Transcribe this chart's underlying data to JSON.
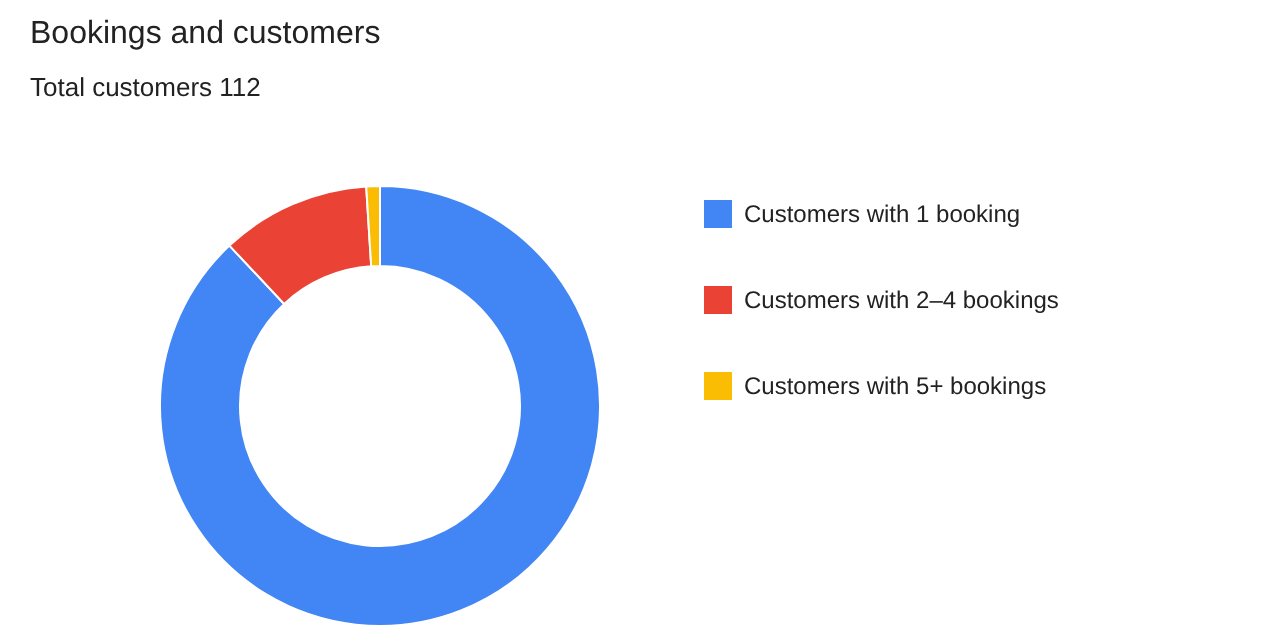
{
  "chart_data": {
    "type": "donut",
    "title": "Bookings and customers",
    "subtitle": "Total customers 112",
    "categories": [
      "Customers with 1 booking",
      "Customers with 2–4 bookings",
      "Customers with 5+ bookings"
    ],
    "values": [
      88,
      11,
      1
    ],
    "colors": [
      "#4285f4",
      "#ea4335",
      "#fbbc04"
    ],
    "legend": "right"
  }
}
